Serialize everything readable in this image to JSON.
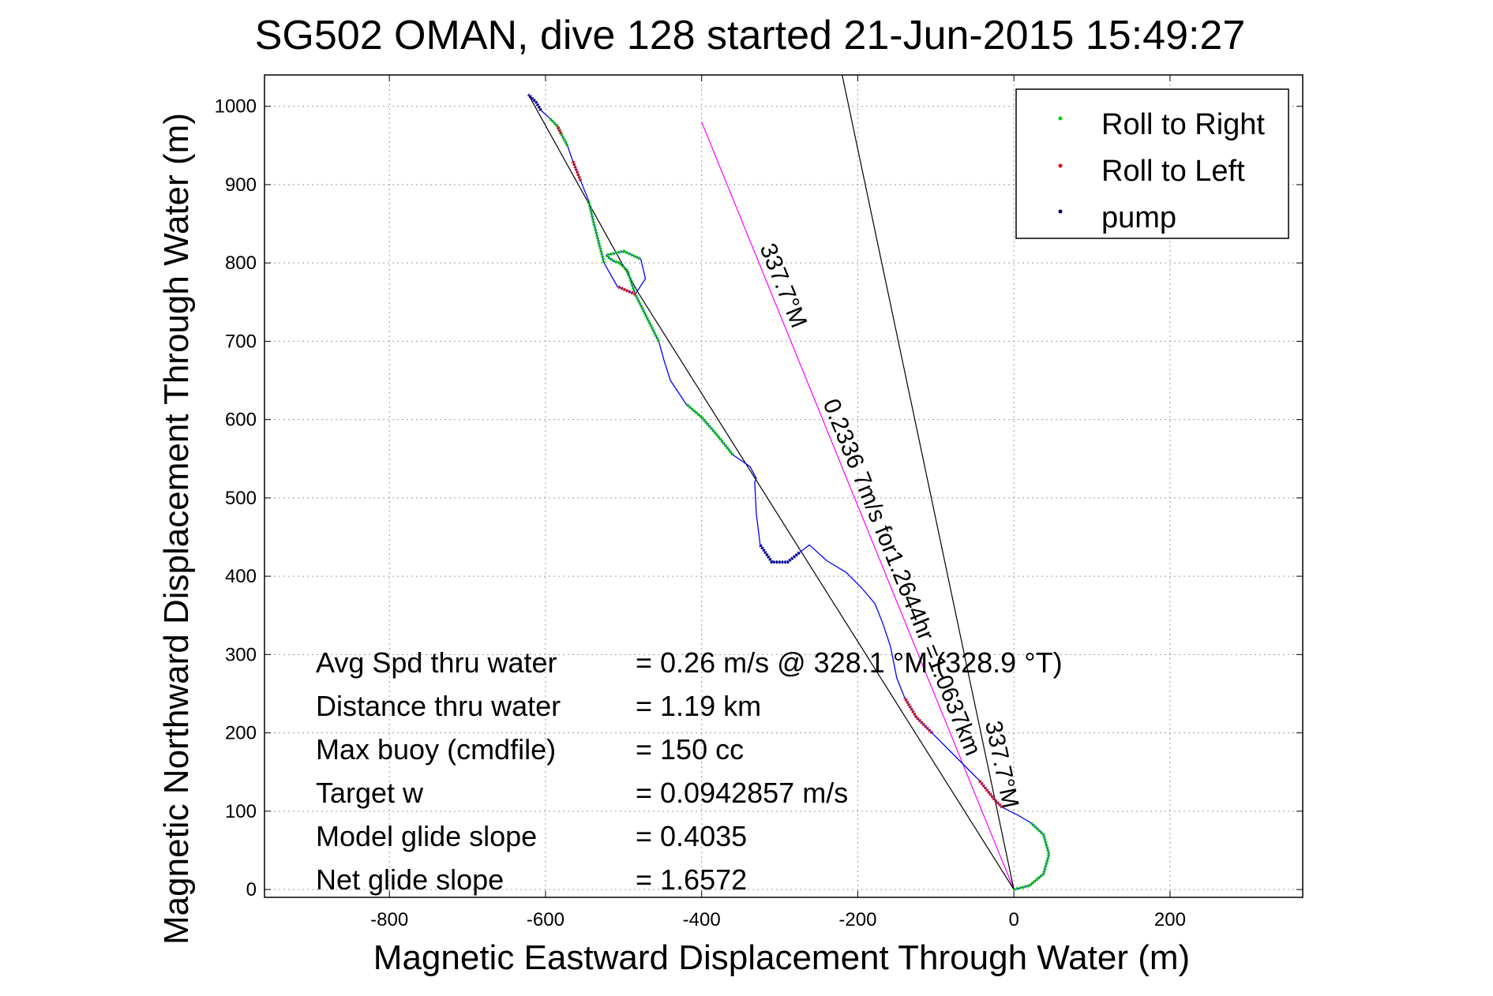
{
  "chart_data": {
    "type": "line",
    "title": "SG502 OMAN, dive 128 started 21-Jun-2015 15:49:27",
    "xlabel": "Magnetic Eastward Displacement Through Water (m)",
    "ylabel": "Magnetic Northward Displacement Through Water (m)",
    "xlim": [
      -960,
      370
    ],
    "ylim": [
      -10,
      1040
    ],
    "xticks": [
      -800,
      -600,
      -400,
      -200,
      0,
      200
    ],
    "yticks": [
      0,
      100,
      200,
      300,
      400,
      500,
      600,
      700,
      800,
      900,
      1000
    ],
    "grid": true,
    "legend": {
      "position": "top-right",
      "entries": [
        {
          "label": "Roll to Right",
          "color": "#00cc00"
        },
        {
          "label": "Roll to Left",
          "color": "#dd0000"
        },
        {
          "label": "pump",
          "color": "#000080"
        }
      ]
    },
    "track": {
      "color": "#0000ff",
      "x": [
        0,
        20,
        38,
        45,
        38,
        22,
        5,
        -15,
        -25,
        -45,
        -75,
        -105,
        -125,
        -140,
        -150,
        -158,
        -168,
        -178,
        -195,
        -215,
        -240,
        -262,
        -275,
        -290,
        -310,
        -325,
        -330,
        -332,
        -330,
        -338,
        -360,
        -380,
        -400,
        -420,
        -440,
        -448,
        -455,
        -470,
        -485,
        -495,
        -505,
        -512,
        -518,
        -522,
        -500,
        -478,
        -472,
        -485,
        -508,
        -525,
        -538,
        -545,
        -555,
        -565,
        -572,
        -580,
        -585,
        -595,
        -606,
        -612,
        -622
      ],
      "y": [
        0,
        5,
        20,
        45,
        70,
        85,
        95,
        105,
        115,
        140,
        170,
        200,
        220,
        245,
        270,
        310,
        340,
        365,
        385,
        405,
        420,
        440,
        430,
        418,
        418,
        440,
        480,
        520,
        525,
        540,
        555,
        580,
        603,
        620,
        650,
        675,
        700,
        730,
        760,
        790,
        800,
        802,
        806,
        810,
        815,
        805,
        780,
        760,
        770,
        800,
        850,
        880,
        905,
        930,
        950,
        965,
        975,
        985,
        995,
        1005,
        1015
      ],
      "roll_right_segments": [
        [
          0,
          5
        ],
        [
          30,
          33
        ],
        [
          36,
          45
        ],
        [
          49,
          51
        ],
        [
          54,
          57
        ]
      ],
      "roll_left_segments": [
        [
          7,
          9
        ],
        [
          11,
          13
        ],
        [
          47,
          48
        ],
        [
          52,
          53
        ],
        [
          55,
          56
        ]
      ],
      "pump_segments": [
        [
          22,
          25
        ],
        [
          58,
          60
        ]
      ]
    },
    "reference_lines": [
      {
        "from": [
          0,
          0
        ],
        "to": [
          -400,
          980
        ],
        "color": "#ff00ff"
      },
      {
        "from": [
          0,
          0
        ],
        "to": [
          -220,
          1040
        ],
        "color": "#000000"
      },
      {
        "from": [
          0,
          0
        ],
        "to": [
          -480,
          760
        ],
        "color": "#000000"
      },
      {
        "from": [
          -480,
          760
        ],
        "to": [
          -622,
          1015
        ],
        "color": "#000000"
      }
    ],
    "annotations": {
      "heading_top": "337.7°M",
      "leg_text": "0.2336 7m/s for1.2644hr =1.0637km",
      "heading_bottom": "337.7°M"
    },
    "stats": [
      {
        "label": "Avg Spd thru water",
        "value": "=  0.26 m/s @ 328.1 °M (328.9 °T)"
      },
      {
        "label": "Distance thru water",
        "value": "=  1.19 km"
      },
      {
        "label": "Max buoy (cmdfile)",
        "value": "= 150 cc"
      },
      {
        "label": "Target w",
        "value": "= 0.0942857 m/s"
      },
      {
        "label": "Model glide slope",
        "value": "= 0.4035"
      },
      {
        "label": "Net glide slope",
        "value": "= 1.6572"
      }
    ]
  }
}
